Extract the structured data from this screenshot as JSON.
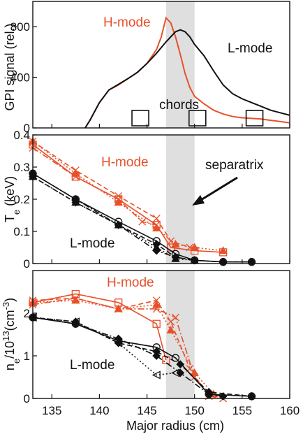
{
  "chart_data": [
    {
      "type": "line",
      "ylabel": "GPI signal (rel.)",
      "ylim": [
        0,
        1000
      ],
      "y_ticks": [
        0,
        400,
        800
      ],
      "annotations": [
        "H-mode",
        "L-mode",
        "chords"
      ],
      "shaded_band": [
        147,
        150
      ],
      "chords_x": [
        144.3,
        150.3,
        156.3
      ],
      "series": [
        {
          "name": "H-mode",
          "color": "#e8502a",
          "x": [
            138.5,
            139,
            140,
            141,
            142,
            143,
            144,
            145,
            146,
            146.5,
            147,
            147.5,
            148,
            148.5,
            149,
            149.5,
            150,
            151,
            152,
            153,
            154,
            155,
            156,
            157,
            158,
            159,
            160
          ],
          "y": [
            0,
            60,
            200,
            300,
            340,
            390,
            440,
            510,
            620,
            720,
            870,
            830,
            720,
            580,
            430,
            320,
            250,
            190,
            140,
            110,
            90,
            80,
            75,
            70,
            60,
            50,
            40
          ]
        },
        {
          "name": "L-mode",
          "color": "#111111",
          "x": [
            138.5,
            139,
            140,
            141,
            142,
            143,
            144,
            145,
            146,
            147,
            148,
            148.5,
            149,
            149.5,
            150,
            151,
            152,
            153,
            154,
            155,
            156,
            157,
            158,
            159,
            160
          ],
          "y": [
            0,
            60,
            200,
            300,
            345,
            390,
            440,
            510,
            590,
            680,
            760,
            775,
            760,
            720,
            660,
            570,
            450,
            340,
            270,
            230,
            200,
            170,
            140,
            120,
            100
          ]
        }
      ]
    },
    {
      "type": "line",
      "ylabel": "T_e (keV)",
      "ylim": [
        0,
        0.4
      ],
      "y_ticks": [
        0,
        0.1,
        0.2,
        0.3,
        0.4
      ],
      "annotations": [
        "H-mode",
        "L-mode",
        "separatrix"
      ],
      "shaded_band": [
        147,
        150
      ],
      "series": [
        {
          "name": "H-mode 1",
          "color": "#e8502a",
          "marker": "square",
          "x": [
            133,
            137.5,
            142,
            146,
            147.5,
            150,
            153
          ],
          "y": [
            0.37,
            0.27,
            0.2,
            0.12,
            0.05,
            0.04,
            0.035
          ]
        },
        {
          "name": "H-mode 2",
          "color": "#e8502a",
          "marker": "cross",
          "x": [
            133,
            137.5,
            142,
            146,
            147.5,
            149.5
          ],
          "y": [
            0.38,
            0.29,
            0.21,
            0.14,
            0.07,
            0.05
          ]
        },
        {
          "name": "H-mode 3",
          "color": "#e8502a",
          "marker": "triangle",
          "x": [
            133,
            137.5,
            142,
            146,
            148,
            150,
            153
          ],
          "y": [
            0.38,
            0.28,
            0.19,
            0.11,
            0.06,
            0.05,
            0.04
          ]
        },
        {
          "name": "H-mode 4",
          "color": "#e8502a",
          "marker": "cross",
          "x": [
            133,
            137.5,
            142,
            144.5,
            146
          ],
          "y": [
            0.36,
            0.27,
            0.2,
            0.13,
            0.12
          ]
        },
        {
          "name": "L-mode 1",
          "color": "#111111",
          "marker": "circle",
          "x": [
            133,
            137.5,
            142,
            146,
            148,
            150,
            153,
            156
          ],
          "y": [
            0.28,
            0.2,
            0.13,
            0.07,
            0.03,
            0.01,
            0.005,
            0.005
          ]
        },
        {
          "name": "L-mode 2",
          "color": "#111111",
          "marker": "diamond",
          "x": [
            133,
            137.5,
            142,
            146,
            148,
            150,
            153,
            156
          ],
          "y": [
            0.27,
            0.19,
            0.12,
            0.06,
            0.02,
            0.01,
            0.005,
            0.005
          ]
        },
        {
          "name": "L-mode 3",
          "color": "#111111",
          "marker": "triangle",
          "x": [
            133,
            137.5,
            142,
            146,
            148,
            150
          ],
          "y": [
            0.27,
            0.19,
            0.12,
            0.05,
            0.015,
            0.01
          ]
        },
        {
          "name": "L-mode 4",
          "color": "#111111",
          "marker": "diamond",
          "x": [
            133,
            137.5,
            142,
            146,
            148,
            150,
            153
          ],
          "y": [
            0.28,
            0.2,
            0.12,
            0.04,
            0.02,
            0.01,
            0.005
          ]
        }
      ]
    },
    {
      "type": "line",
      "xlabel": "Major radius (cm)",
      "ylabel": "n_e/10^13 (cm^-3)",
      "xlim": [
        133,
        160
      ],
      "x_ticks": [
        135,
        140,
        145,
        150,
        155,
        160
      ],
      "ylim": [
        0,
        3
      ],
      "y_ticks": [
        0,
        1,
        2
      ],
      "annotations": [
        "H-mode",
        "L-mode"
      ],
      "shaded_band": [
        147,
        150
      ],
      "series": [
        {
          "name": "H-mode 1",
          "color": "#e8502a",
          "marker": "square",
          "x": [
            133,
            137.5,
            142,
            146,
            147
          ],
          "y": [
            2.25,
            2.45,
            2.25,
            1.75,
            0.9
          ]
        },
        {
          "name": "H-mode 2",
          "color": "#e8502a",
          "marker": "cross",
          "x": [
            133,
            137.5,
            142,
            146,
            147.5,
            149.5,
            151.5,
            153
          ],
          "y": [
            2.3,
            2.35,
            2.1,
            2.3,
            1.8,
            0.7,
            0.05,
            0.0
          ]
        },
        {
          "name": "H-mode 3",
          "color": "#e8502a",
          "marker": "triangle",
          "x": [
            133,
            137.5,
            142,
            146,
            147.5,
            150,
            152
          ],
          "y": [
            2.25,
            2.3,
            2.1,
            2.2,
            1.6,
            0.6,
            0.1
          ]
        },
        {
          "name": "H-mode 4",
          "color": "#e8502a",
          "marker": "cross",
          "x": [
            133,
            137.5,
            142,
            146,
            148,
            150
          ],
          "y": [
            2.2,
            2.35,
            2.1,
            2.1,
            1.9,
            0.5
          ]
        },
        {
          "name": "L-mode 1",
          "color": "#111111",
          "marker": "circle",
          "x": [
            133,
            137.5,
            142,
            146,
            148,
            151.5,
            156
          ],
          "y": [
            1.9,
            1.75,
            1.35,
            1.2,
            0.95,
            0.1,
            0.05
          ]
        },
        {
          "name": "L-mode 2",
          "color": "#111111",
          "marker": "diamond",
          "x": [
            133,
            137.5,
            142,
            146,
            148.5,
            151.5,
            156
          ],
          "y": [
            1.9,
            1.8,
            1.3,
            1.1,
            0.8,
            0.15,
            0.05
          ]
        },
        {
          "name": "L-mode 3",
          "color": "#111111",
          "marker": "triangle-left",
          "x": [
            133,
            137.5,
            142,
            146,
            148
          ],
          "y": [
            1.9,
            1.8,
            1.3,
            0.55,
            0.6
          ]
        },
        {
          "name": "L-mode 4",
          "color": "#111111",
          "marker": "diamond",
          "x": [
            133,
            137.5,
            142,
            146,
            148.5,
            151.5,
            153
          ],
          "y": [
            1.9,
            1.75,
            1.4,
            1.0,
            0.6,
            0.1,
            0.05
          ]
        }
      ]
    }
  ]
}
